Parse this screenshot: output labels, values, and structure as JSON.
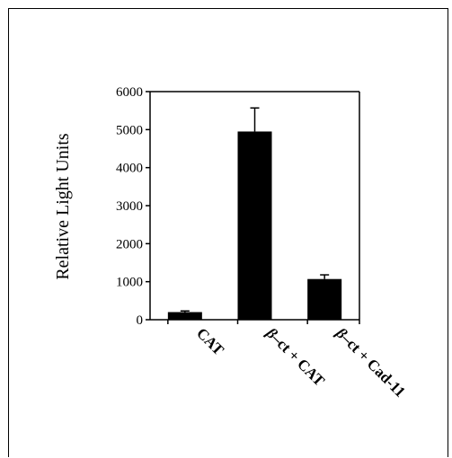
{
  "chart_data": {
    "type": "bar",
    "title": "",
    "xlabel": "",
    "ylabel": "Relative Light Units",
    "ylim": [
      0,
      6000
    ],
    "yticks": [
      0,
      1000,
      2000,
      3000,
      4000,
      5000,
      6000
    ],
    "categories": [
      {
        "greek": "",
        "rest": "CAT"
      },
      {
        "greek": "β",
        "rest": "–ct + CAT"
      },
      {
        "greek": "β",
        "rest": "–ct + Cad-11"
      }
    ],
    "values": [
      200,
      4950,
      1070
    ],
    "errors": [
      30,
      620,
      110
    ],
    "grid": false,
    "bar_color": "#000000"
  }
}
